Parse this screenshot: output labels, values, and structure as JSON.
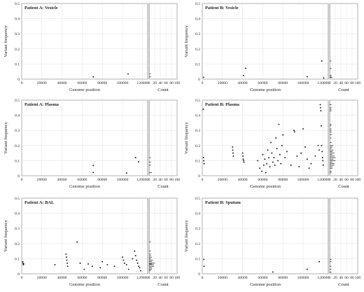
{
  "figure": {
    "xlabel": "Genome position",
    "ylabel": "Variant frequency",
    "count_label": "Count"
  },
  "chart_data": [
    {
      "type": "scatter",
      "title": "Patient A: Vesicle",
      "xlabel": "Genome position",
      "ylabel": "Variant frequency",
      "xlim": [
        0,
        125000
      ],
      "ylim": [
        0,
        0.5
      ],
      "x_ticks": [
        0,
        20000,
        40000,
        60000,
        80000,
        100000,
        120000
      ],
      "y_ticks": [
        0,
        0.1,
        0.2,
        0.3,
        0.4,
        0.5
      ],
      "count_ticks": [
        0,
        20,
        40,
        60,
        80,
        100
      ],
      "grid": true,
      "points": [
        [
          71000,
          0.015
        ],
        [
          105500,
          0.034
        ]
      ]
    },
    {
      "type": "scatter",
      "title": "Patient B: Vesicle",
      "xlabel": "Genome position",
      "ylabel": "Variant frequency",
      "xlim": [
        0,
        125000
      ],
      "ylim": [
        0,
        0.5
      ],
      "x_ticks": [
        0,
        20000,
        40000,
        60000,
        80000,
        100000,
        120000
      ],
      "y_ticks": [
        0,
        0.1,
        0.2,
        0.3,
        0.4,
        0.5
      ],
      "count_ticks": [
        0,
        20,
        40,
        60,
        80,
        100
      ],
      "grid": true,
      "points": [
        [
          1200,
          0.012
        ],
        [
          41000,
          0.024
        ],
        [
          43000,
          0.072
        ],
        [
          104000,
          0.016
        ],
        [
          118500,
          0.12
        ],
        [
          120500,
          0.008
        ]
      ]
    },
    {
      "type": "scatter",
      "title": "Patient A: Plasma",
      "xlabel": "Genome position",
      "ylabel": "Variant frequency",
      "xlim": [
        0,
        125000
      ],
      "ylim": [
        0,
        0.5
      ],
      "x_ticks": [
        0,
        20000,
        40000,
        60000,
        80000,
        100000,
        120000
      ],
      "y_ticks": [
        0,
        0.1,
        0.2,
        0.3,
        0.4,
        0.5
      ],
      "count_ticks": [
        0,
        20,
        40,
        60,
        80,
        100
      ],
      "grid": true,
      "points": [
        [
          71000,
          0.068
        ],
        [
          71000,
          0.022
        ],
        [
          104000,
          0.018
        ],
        [
          113000,
          0.12
        ],
        [
          116000,
          0.092
        ]
      ]
    },
    {
      "type": "scatter",
      "title": "Patient B: Plasma",
      "xlabel": "Genome position",
      "ylabel": "Variant frequency",
      "xlim": [
        0,
        125000
      ],
      "ylim": [
        0,
        0.5
      ],
      "x_ticks": [
        0,
        20000,
        40000,
        60000,
        80000,
        100000,
        120000
      ],
      "y_ticks": [
        0,
        0.1,
        0.2,
        0.3,
        0.4,
        0.5
      ],
      "count_ticks": [
        0,
        20,
        40,
        60,
        80,
        100
      ],
      "grid": true,
      "points": [
        [
          1000,
          0.44
        ],
        [
          1200,
          0.12
        ],
        [
          1500,
          0.1
        ],
        [
          1800,
          0.08
        ],
        [
          30000,
          0.19
        ],
        [
          30200,
          0.17
        ],
        [
          30500,
          0.15
        ],
        [
          30800,
          0.13
        ],
        [
          40000,
          0.15
        ],
        [
          40300,
          0.13
        ],
        [
          40600,
          0.11
        ],
        [
          41000,
          0.1
        ],
        [
          41300,
          0.09
        ],
        [
          55000,
          0.1
        ],
        [
          57000,
          0.05
        ],
        [
          59000,
          0.03
        ],
        [
          60000,
          0.14
        ],
        [
          61000,
          0.07
        ],
        [
          62000,
          0.11
        ],
        [
          63000,
          0.02
        ],
        [
          64000,
          0.08
        ],
        [
          65000,
          0.17
        ],
        [
          66000,
          0.12
        ],
        [
          67000,
          0.06
        ],
        [
          68000,
          0.22
        ],
        [
          69000,
          0.15
        ],
        [
          70000,
          0.09
        ],
        [
          71000,
          0.12
        ],
        [
          72000,
          0.07
        ],
        [
          73000,
          0.25
        ],
        [
          74000,
          0.18
        ],
        [
          75000,
          0.1
        ],
        [
          76000,
          0.34
        ],
        [
          77000,
          0.14
        ],
        [
          78000,
          0.08
        ],
        [
          79000,
          0.2
        ],
        [
          80000,
          0.27
        ],
        [
          82000,
          0.12
        ],
        [
          84000,
          0.16
        ],
        [
          88000,
          0.07
        ],
        [
          91000,
          0.3
        ],
        [
          91500,
          0.29
        ],
        [
          94000,
          0.13
        ],
        [
          96000,
          0.06
        ],
        [
          98000,
          0.15
        ],
        [
          100000,
          0.31
        ],
        [
          102000,
          0.19
        ],
        [
          104000,
          0.11
        ],
        [
          106000,
          0.05
        ],
        [
          108000,
          0.08
        ],
        [
          112000,
          0.13
        ],
        [
          115000,
          0.2
        ],
        [
          116000,
          0.17
        ],
        [
          117000,
          0.47
        ],
        [
          117300,
          0.45
        ],
        [
          117600,
          0.43
        ],
        [
          118000,
          0.33
        ],
        [
          118400,
          0.2
        ],
        [
          118800,
          0.16
        ],
        [
          119200,
          0.12
        ],
        [
          119600,
          0.1
        ],
        [
          120000,
          0.07
        ]
      ]
    },
    {
      "type": "scatter",
      "title": "Patient A: BAL",
      "xlabel": "Genome position",
      "ylabel": "Variant frequency",
      "xlim": [
        0,
        125000
      ],
      "ylim": [
        0,
        0.5
      ],
      "x_ticks": [
        0,
        20000,
        40000,
        60000,
        80000,
        100000,
        120000
      ],
      "y_ticks": [
        0,
        0.1,
        0.2,
        0.3,
        0.4,
        0.5
      ],
      "count_ticks": [
        0,
        20,
        40,
        60,
        80,
        100
      ],
      "grid": true,
      "points": [
        [
          1000,
          0.08
        ],
        [
          1300,
          0.07
        ],
        [
          1600,
          0.06
        ],
        [
          2000,
          0.065
        ],
        [
          33000,
          0.06
        ],
        [
          44000,
          0.13
        ],
        [
          44400,
          0.11
        ],
        [
          44800,
          0.09
        ],
        [
          45200,
          0.07
        ],
        [
          45600,
          0.05
        ],
        [
          55000,
          0.21
        ],
        [
          58000,
          0.07
        ],
        [
          62000,
          0.03
        ],
        [
          66000,
          0.065
        ],
        [
          70000,
          0.05
        ],
        [
          78000,
          0.04
        ],
        [
          80000,
          0.08
        ],
        [
          85000,
          0.06
        ],
        [
          92000,
          0.05
        ],
        [
          100000,
          0.11
        ],
        [
          101000,
          0.09
        ],
        [
          102000,
          0.07
        ],
        [
          104000,
          0.06
        ],
        [
          106000,
          0.03
        ],
        [
          110000,
          0.1
        ],
        [
          112000,
          0.15
        ],
        [
          113000,
          0.12
        ],
        [
          114000,
          0.09
        ],
        [
          115000,
          0.07
        ],
        [
          116000,
          0.05
        ],
        [
          117000,
          0.04
        ],
        [
          118000,
          0.02
        ]
      ]
    },
    {
      "type": "scatter",
      "title": "Patient B: Sputum",
      "xlabel": "Genome position",
      "ylabel": "Variant frequency",
      "xlim": [
        0,
        125000
      ],
      "ylim": [
        0,
        0.5
      ],
      "x_ticks": [
        0,
        20000,
        40000,
        60000,
        80000,
        100000,
        120000
      ],
      "y_ticks": [
        0,
        0.1,
        0.2,
        0.3,
        0.4,
        0.5
      ],
      "count_ticks": [
        0,
        20,
        40,
        60,
        80,
        100
      ],
      "grid": true,
      "points": [
        [
          1500,
          0.095
        ],
        [
          1800,
          0.05
        ],
        [
          70000,
          0.012
        ],
        [
          104000,
          0.03
        ],
        [
          116000,
          0.08
        ]
      ]
    }
  ]
}
